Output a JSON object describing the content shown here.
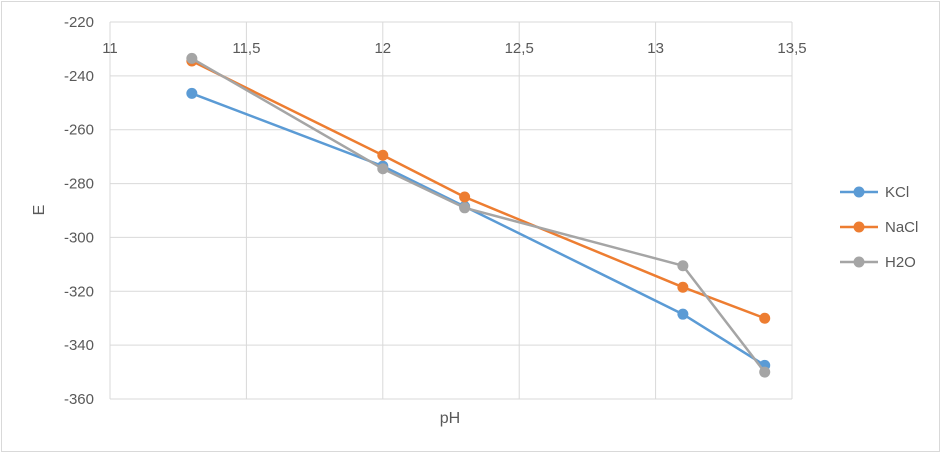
{
  "chart_data": {
    "type": "line",
    "title": "",
    "xlabel": "pH",
    "ylabel": "E",
    "xlim": [
      11,
      13.5
    ],
    "ylim": [
      -360,
      -220
    ],
    "x_ticks": [
      11,
      11.5,
      12,
      12.5,
      13,
      13.5
    ],
    "x_tick_labels": [
      "11",
      "11,5",
      "12",
      "12,5",
      "13",
      "13,5"
    ],
    "y_ticks": [
      -220,
      -240,
      -260,
      -280,
      -300,
      -320,
      -340,
      -360
    ],
    "y_tick_labels": [
      "-220",
      "-240",
      "-260",
      "-280",
      "-300",
      "-320",
      "-340",
      "-360"
    ],
    "grid": true,
    "legend_position": "right",
    "series": [
      {
        "name": "KCl",
        "color": "#5b9bd5",
        "x": [
          11.3,
          12.0,
          12.3,
          13.1,
          13.4
        ],
        "y": [
          -246.5,
          -273.5,
          -288.5,
          -328.5,
          -347.5
        ]
      },
      {
        "name": "NaCl",
        "color": "#ed7d31",
        "x": [
          11.3,
          12.0,
          12.3,
          13.1,
          13.4
        ],
        "y": [
          -234.5,
          -269.5,
          -285.0,
          -318.5,
          -330.0
        ]
      },
      {
        "name": "H2O",
        "color": "#a5a5a5",
        "x": [
          11.3,
          12.0,
          12.3,
          13.1,
          13.4
        ],
        "y": [
          -233.5,
          -274.5,
          -289.0,
          -310.5,
          -350.0
        ]
      }
    ]
  }
}
